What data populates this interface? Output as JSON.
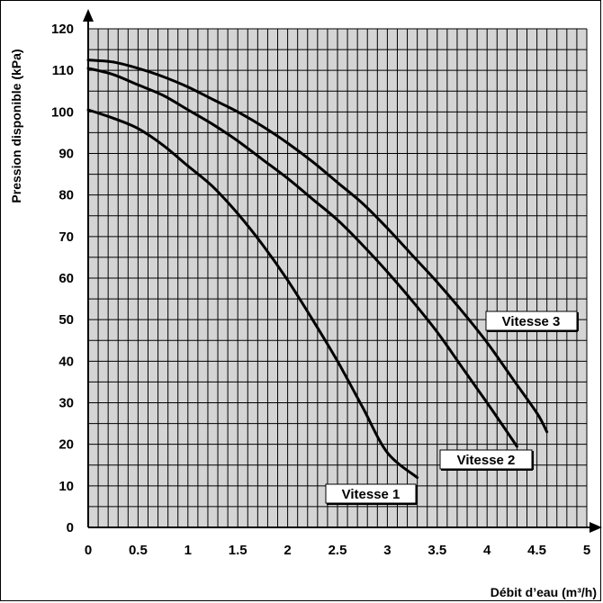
{
  "chart_data": {
    "type": "line",
    "title": "",
    "xlabel": "Débit d’eau (m³/h)",
    "ylabel": "Pression disponible (kPa)",
    "xlim": [
      0,
      5
    ],
    "ylim": [
      0,
      120
    ],
    "x_ticks": [
      "0",
      "0.5",
      "1",
      "1.5",
      "2",
      "2.5",
      "3",
      "3.5",
      "4",
      "4.5",
      "5"
    ],
    "y_ticks": [
      "0",
      "10",
      "20",
      "30",
      "40",
      "50",
      "60",
      "70",
      "80",
      "90",
      "100",
      "110",
      "120"
    ],
    "grid": true,
    "series": [
      {
        "name": "Vitesse 1",
        "x": [
          0,
          0.25,
          0.5,
          0.75,
          1.0,
          1.25,
          1.5,
          1.75,
          2.0,
          2.25,
          2.5,
          2.75,
          3.0,
          3.3
        ],
        "y": [
          100.5,
          98.5,
          96,
          92,
          87,
          82,
          75.5,
          68,
          59.5,
          50,
          40,
          29,
          18,
          12
        ]
      },
      {
        "name": "Vitesse 2",
        "x": [
          0,
          0.25,
          0.5,
          0.75,
          1.0,
          1.25,
          1.5,
          1.75,
          2.0,
          2.25,
          2.5,
          2.75,
          3.0,
          3.25,
          3.5,
          3.75,
          4.0,
          4.3
        ],
        "y": [
          110.5,
          109,
          106.5,
          104,
          100.5,
          97,
          93,
          88.5,
          84,
          79,
          74,
          68,
          61.5,
          54.5,
          47,
          38.5,
          30,
          19.5
        ]
      },
      {
        "name": "Vitesse 3",
        "x": [
          0,
          0.25,
          0.5,
          0.75,
          1.0,
          1.25,
          1.5,
          1.75,
          2.0,
          2.25,
          2.5,
          2.75,
          3.0,
          3.25,
          3.5,
          3.75,
          4.0,
          4.25,
          4.5,
          4.6
        ],
        "y": [
          112.5,
          112,
          110.5,
          108.5,
          106,
          103,
          100,
          96.5,
          92.5,
          88,
          83,
          78,
          72,
          65.5,
          59,
          52,
          44.5,
          36,
          27.5,
          23
        ]
      }
    ],
    "labels": [
      "Vitesse 1",
      "Vitesse 2",
      "Vitesse 3"
    ]
  }
}
